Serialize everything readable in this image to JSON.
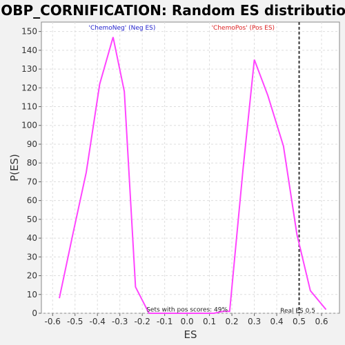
{
  "chart_data": {
    "type": "line",
    "title": "GOBP_CORNIFICATION: Random ES distribution",
    "xlabel": "ES",
    "ylabel": "P(ES)",
    "xlim": [
      -0.65,
      0.68
    ],
    "ylim": [
      0,
      155
    ],
    "xticks": [
      "-0.6",
      "-0.5",
      "-0.4",
      "-0.3",
      "-0.2",
      "-0.1",
      "0.0",
      "0.1",
      "0.2",
      "0.3",
      "0.4",
      "0.5",
      "0.6"
    ],
    "yticks": [
      "0",
      "10",
      "20",
      "30",
      "40",
      "50",
      "60",
      "70",
      "80",
      "90",
      "100",
      "110",
      "120",
      "130",
      "140",
      "150"
    ],
    "grid": true,
    "series": [
      {
        "color": "#ff44ff",
        "x": [
          -0.57,
          -0.51,
          -0.45,
          -0.39,
          -0.33,
          -0.28,
          -0.23,
          -0.17,
          -0.12,
          -0.06,
          0.0,
          0.05,
          0.12,
          0.16,
          0.19,
          0.25,
          0.3,
          0.36,
          0.43,
          0.49,
          0.55,
          0.62
        ],
        "y": [
          8,
          42,
          75,
          122,
          147,
          118,
          14,
          0,
          0,
          0,
          0,
          0,
          0,
          1,
          1,
          77,
          135,
          116,
          89,
          42,
          12,
          2
        ]
      }
    ],
    "real_es": {
      "x": 0.5,
      "label": "Real ES 0.5",
      "color": "#333333"
    },
    "annotations": [
      {
        "text": "'ChemoNeg' (Neg ES)",
        "x": -0.29,
        "y": 151,
        "color": "#2222cc"
      },
      {
        "text": "'ChemoPos' (Pos ES)",
        "x": 0.25,
        "y": 151,
        "color": "#dd2222"
      },
      {
        "text": "Sets with pos scores: 49%",
        "x": 0.0,
        "y": 1,
        "color": "#222222"
      }
    ]
  }
}
